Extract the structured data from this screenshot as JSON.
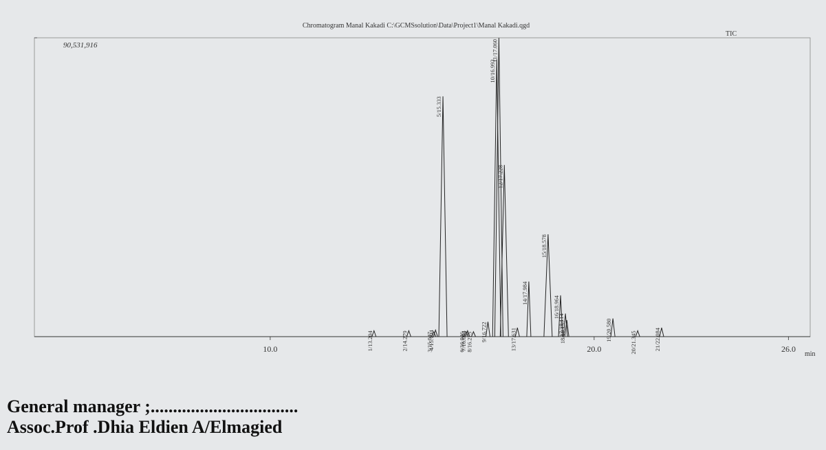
{
  "chart_data": {
    "type": "line",
    "title": "Chromatogram Manal Kakadi C:\\GCMSsolution\\Data\\Project1\\Manal Kakadi.qgd",
    "trace": "TIC",
    "xlabel": "min",
    "color": "#222222",
    "xlim": [
      2.72,
      26.67
    ],
    "xticks": [
      {
        "value": 10,
        "label": "10.0"
      },
      {
        "value": 20,
        "label": "20.0"
      },
      {
        "value": 26,
        "label": "26.0"
      }
    ],
    "ylim": [
      0,
      90531916
    ],
    "yticks": [
      {
        "value": 90531916,
        "label": "90,531,916"
      }
    ],
    "peaks": [
      {
        "label": "1/13.204",
        "x": 13.204,
        "height": 1800000
      },
      {
        "label": "2/14.279",
        "x": 14.279,
        "height": 1800000
      },
      {
        "label": "3/15.047",
        "x": 15.047,
        "height": 1500000
      },
      {
        "label": "4/15.104",
        "x": 15.104,
        "height": 2000000
      },
      {
        "label": "5/15.333",
        "x": 15.333,
        "height": 72800000
      },
      {
        "label": "6/16.046",
        "x": 16.046,
        "height": 1500000
      },
      {
        "label": "7/16.094",
        "x": 16.094,
        "height": 1800000
      },
      {
        "label": "8/16.275",
        "x": 16.275,
        "height": 1500000
      },
      {
        "label": "9/16.722",
        "x": 16.722,
        "height": 4500000
      },
      {
        "label": "10/16.993",
        "x": 16.993,
        "height": 84000000
      },
      {
        "label": "11/17.060",
        "x": 17.06,
        "height": 90500000
      },
      {
        "label": "12/17.228",
        "x": 17.228,
        "height": 52000000
      },
      {
        "label": "13/17.631",
        "x": 17.631,
        "height": 2700000
      },
      {
        "label": "14/17.984",
        "x": 17.984,
        "height": 16700000
      },
      {
        "label": "15/18.578",
        "x": 18.578,
        "height": 31000000
      },
      {
        "label": "16/18.964",
        "x": 18.964,
        "height": 12500000
      },
      {
        "label": "17/19.114",
        "x": 19.114,
        "height": 7000000
      },
      {
        "label": "18/19.157",
        "x": 19.157,
        "height": 5000000
      },
      {
        "label": "19/20.580",
        "x": 20.58,
        "height": 5500000
      },
      {
        "label": "20/21.345",
        "x": 21.345,
        "height": 1800000
      },
      {
        "label": "21/22.084",
        "x": 22.084,
        "height": 2700000
      }
    ]
  },
  "footer": {
    "line1": "General manager ;.................................",
    "line2": "Assoc.Prof .Dhia Eldien A/Elmagied"
  }
}
